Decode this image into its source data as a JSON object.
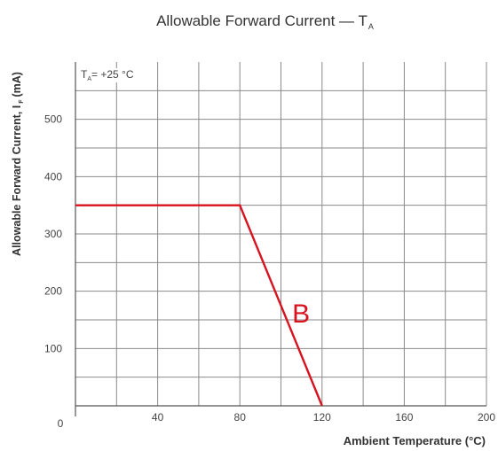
{
  "chart_data": {
    "type": "line",
    "title_main": "Allowable Forward Current — T",
    "title_sub": "A",
    "ylabel_main": "Allowable Forward Current,  I",
    "ylabel_sub": "F",
    "ylabel_unit": "(mA)",
    "xlabel": "Ambient Temperature (°C)",
    "annotation_prefix": "T",
    "annotation_sub": "A",
    "annotation_text": "= +25 °C",
    "xlim": [
      0,
      200
    ],
    "ylim": [
      0,
      600
    ],
    "x_ticks": [
      "0",
      "40",
      "80",
      "120",
      "160",
      "200"
    ],
    "y_ticks": [
      "100",
      "200",
      "300",
      "400",
      "500"
    ],
    "grid": true,
    "series": [
      {
        "name": "B",
        "color": "#d7131e",
        "x": [
          0,
          80,
          120
        ],
        "y": [
          350,
          350,
          0
        ]
      }
    ]
  }
}
